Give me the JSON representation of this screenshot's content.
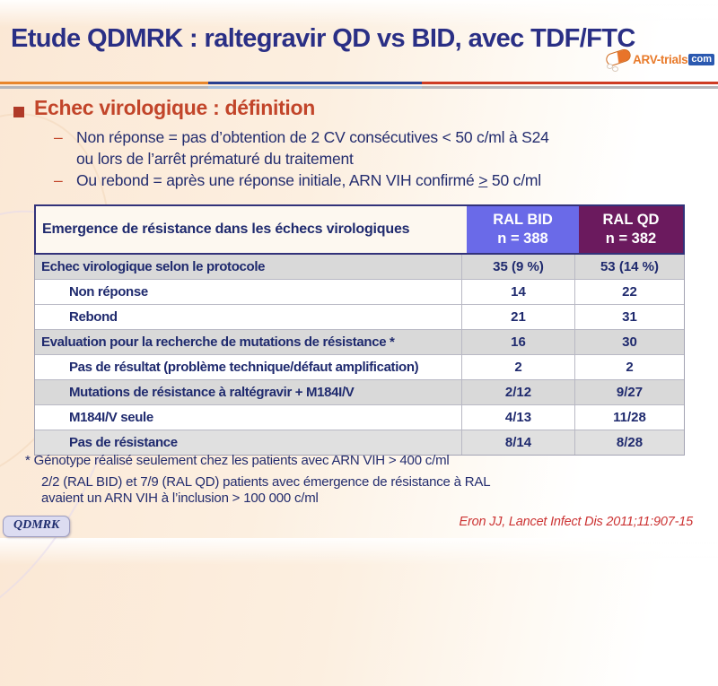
{
  "colors": {
    "title_navy": "#2a2f85",
    "heading_red": "#c2452a",
    "body_navy": "#232c6e",
    "ral_bid_bg": "#6a6ae8",
    "ral_qd_bg": "#6b1a5e",
    "shaded_row": "#d9d9d9",
    "citation_red": "#cc3333",
    "rule_orange": "#e8862c",
    "rule_navy": "#2a3f8f",
    "rule_red": "#ce3c23"
  },
  "header": {
    "title": "Etude QDMRK : raltegravir QD vs BID, avec TDF/FTC",
    "logo": {
      "brand": "ARV-trials",
      "tld": "com"
    }
  },
  "section": {
    "heading": "Echec virologique : définition",
    "dash": "–",
    "bullet1_line1": "Non réponse = pas d’obtention de 2 CV consécutives < 50 c/ml à S24",
    "bullet1_line2": "ou lors de l’arrêt prématuré du traitement",
    "bullet2_pre": "Ou rebond = après une réponse initiale, ARN VIH confirmé ",
    "bullet2_geq": ">",
    "bullet2_post": " 50 c/ml"
  },
  "table": {
    "header": {
      "label": "Emergence de résistance dans les échecs virologiques",
      "bid_line1": "RAL BID",
      "bid_line2": "n = 388",
      "qd_line1": "RAL QD",
      "qd_line2": "n = 382"
    },
    "rows": [
      {
        "label": "Echec virologique selon le protocole",
        "bid": "35 (9 %)",
        "qd": "53 (14 %)"
      },
      {
        "label": "Non réponse",
        "bid": "14",
        "qd": "22"
      },
      {
        "label": "Rebond",
        "bid": "21",
        "qd": "31"
      },
      {
        "label": "Evaluation pour la recherche de mutations de résistance *",
        "bid": "16",
        "qd": "30"
      },
      {
        "label": "Pas de résultat (problème technique/défaut amplification)",
        "bid": "2",
        "qd": "2"
      },
      {
        "label": "Mutations de résistance à raltégravir + M184I/V",
        "bid": "2/12",
        "qd": "9/27"
      },
      {
        "label": "M184I/V seule",
        "bid": "4/13",
        "qd": "11/28"
      },
      {
        "label": "Pas de résistance",
        "bid": "8/14",
        "qd": "8/28"
      }
    ]
  },
  "footnotes": {
    "line1": "* Génotype réalisé seulement chez les patients avec ARN VIH > 400 c/ml",
    "line2": "2/2 (RAL BID) et 7/9 (RAL QD) patients avec émergence de résistance à RAL",
    "line3": "avaient un ARN VIH à l’inclusion > 100 000 c/ml"
  },
  "footer": {
    "badge": "QDMRK",
    "citation": "Eron JJ, Lancet Infect Dis 2011;11:907-15"
  }
}
